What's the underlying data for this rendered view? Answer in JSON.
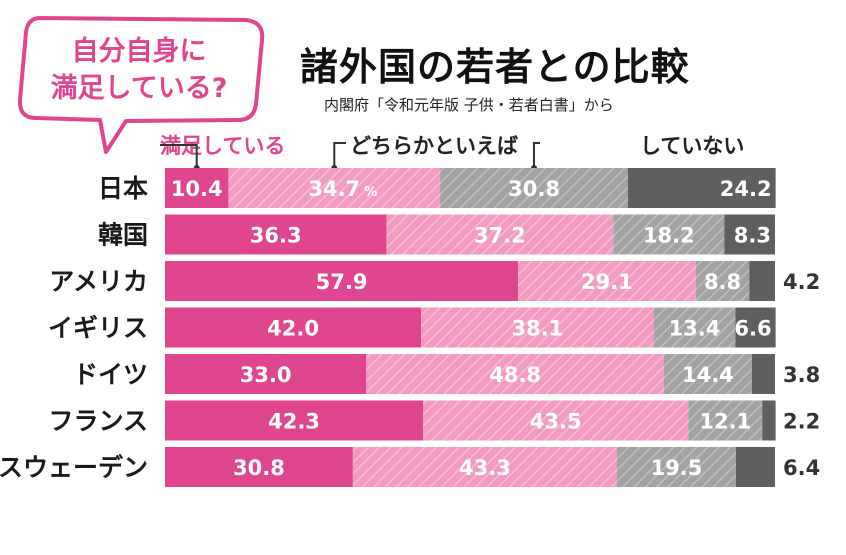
{
  "title": "諸外国の若者との比較",
  "subtitle": "内閣府「令和元年版 子供・若者白書」から",
  "bubble": {
    "line1": "自分自身に",
    "line2": "満足している?"
  },
  "legend": {
    "satisfied": "満足している",
    "somewhat": "どちらかといえば",
    "not": "していない"
  },
  "colors": {
    "satisfied": "#e0468f",
    "somewhat_satisfied": "#f29ac2",
    "somewhat_not": "#a3a3a3",
    "not": "#5f5f5f"
  },
  "chart_data": {
    "type": "bar",
    "orientation": "horizontal",
    "stacked": true,
    "unit": "%",
    "xlim": [
      0,
      100
    ],
    "categories": [
      "日本",
      "韓国",
      "アメリカ",
      "イギリス",
      "ドイツ",
      "フランス",
      "スウェーデン"
    ],
    "series": [
      {
        "values": [
          10.4,
          36.3,
          57.9,
          42.0,
          33.0,
          42.3,
          30.8
        ]
      },
      {
        "values": [
          34.7,
          37.2,
          29.1,
          38.1,
          48.8,
          43.5,
          43.3
        ]
      },
      {
        "values": [
          30.8,
          18.2,
          8.8,
          13.4,
          14.4,
          12.1,
          19.5
        ]
      },
      {
        "values": [
          24.2,
          8.3,
          4.2,
          6.6,
          3.8,
          2.2,
          6.4
        ]
      }
    ]
  }
}
